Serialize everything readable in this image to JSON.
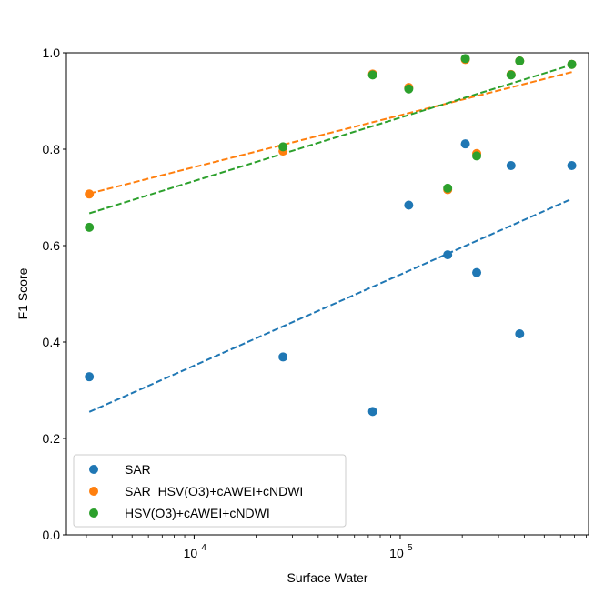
{
  "chart_data": {
    "type": "scatter",
    "title": "",
    "xlabel": "Surface Water",
    "ylabel": "F1 Score",
    "xscale": "log",
    "xlim": [
      2400,
      820000
    ],
    "ylim": [
      0.0,
      1.0
    ],
    "y_ticks": [
      0.0,
      0.2,
      0.4,
      0.6,
      0.8,
      1.0
    ],
    "y_tick_labels": [
      "0.0",
      "0.2",
      "0.4",
      "0.6",
      "0.8",
      "1.0"
    ],
    "x_ticks": [
      10000,
      100000
    ],
    "x_tick_labels": [
      "10",
      "10"
    ],
    "x_tick_exponents": [
      "4",
      "5"
    ],
    "x_minor_ticks": [
      3000,
      4000,
      5000,
      6000,
      7000,
      8000,
      9000,
      20000,
      30000,
      40000,
      50000,
      60000,
      70000,
      80000,
      90000,
      200000,
      300000,
      400000,
      500000,
      600000,
      700000,
      800000
    ],
    "grid": false,
    "legend_position": "lower-left",
    "series": [
      {
        "name": "SAR",
        "color": "#1f77b4",
        "x": [
          3100,
          27000,
          73500,
          110000,
          170000,
          207000,
          235000,
          345000,
          380000,
          680000
        ],
        "y": [
          0.328,
          0.369,
          0.256,
          0.684,
          0.581,
          0.811,
          0.544,
          0.766,
          0.417,
          0.766
        ],
        "trend": [
          [
            3100,
            0.255
          ],
          [
            680000,
            0.697
          ]
        ]
      },
      {
        "name": "SAR_HSV(O3)+cAWEI+cNDWI",
        "color": "#ff7f0e",
        "x": [
          3100,
          27000,
          73500,
          110000,
          170000,
          207000,
          235000,
          345000,
          380000,
          680000
        ],
        "y": [
          0.707,
          0.796,
          0.956,
          0.928,
          0.716,
          0.986,
          0.791,
          0.955,
          0.983,
          0.976
        ],
        "trend": [
          [
            3100,
            0.708
          ],
          [
            680000,
            0.96
          ]
        ]
      },
      {
        "name": "HSV(O3)+cAWEI+cNDWI",
        "color": "#2ca02c",
        "x": [
          3100,
          27000,
          73500,
          110000,
          170000,
          207000,
          235000,
          345000,
          380000,
          680000
        ],
        "y": [
          0.638,
          0.805,
          0.954,
          0.925,
          0.719,
          0.988,
          0.786,
          0.954,
          0.983,
          0.976
        ],
        "trend": [
          [
            3100,
            0.667
          ],
          [
            680000,
            0.975
          ]
        ]
      }
    ]
  }
}
